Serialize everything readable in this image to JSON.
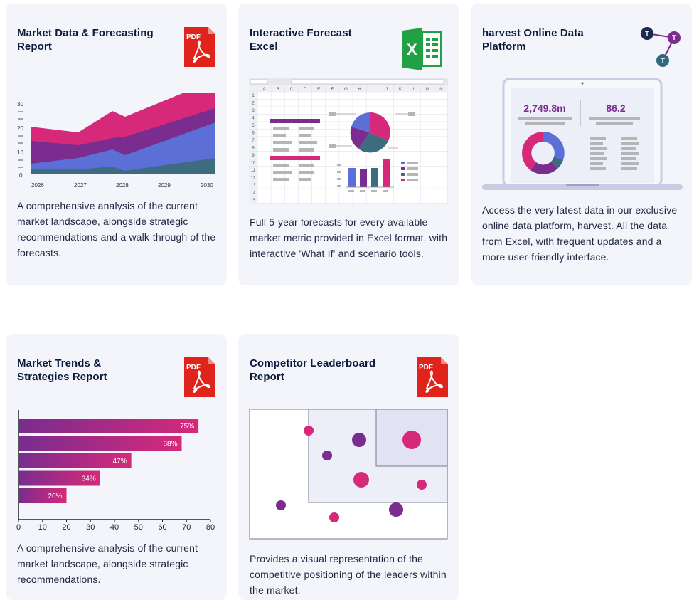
{
  "cards": [
    {
      "title": "Market Data & Forecasting\nReport",
      "icon": "pdf-icon",
      "icon_label": "PDF",
      "description": "A comprehensive analysis of the current market landscape, alongside strategic recommendations and a walk-through of the forecasts.",
      "chart": {
        "y_ticks": [
          "30",
          "20",
          "10",
          "0"
        ],
        "x_ticks": [
          "2026",
          "2027",
          "2028",
          "2029",
          "2030"
        ]
      }
    },
    {
      "title": "Interactive Forecast\nExcel",
      "icon": "excel-icon",
      "icon_label": "X",
      "description": "Full 5-year forecasts for every available market metric provided in Excel format, with interactive 'What If' and scenario tools.",
      "sheet": {
        "columns": [
          "A",
          "B",
          "C",
          "D",
          "E",
          "F",
          "G",
          "H",
          "I",
          "J",
          "K",
          "L",
          "M",
          "N"
        ],
        "rows": [
          "1",
          "2",
          "3",
          "4",
          "5",
          "6",
          "7",
          "8",
          "9",
          "10",
          "11",
          "12",
          "13",
          "14",
          "15"
        ]
      }
    },
    {
      "title": "harvest Online Data\nPlatform",
      "icon": "network-icon",
      "description": "Access the very latest data in our exclusive online data platform, harvest. All the data from Excel, with frequent updates and a more user-friendly interface.",
      "metrics": [
        "2,749.8m",
        "86.2"
      ]
    },
    {
      "title": "Market Trends &\nStrategies Report",
      "icon": "pdf-icon",
      "icon_label": "PDF",
      "description": "A comprehensive analysis of the current market landscape, alongside strategic recommendations.",
      "bars": [
        {
          "label": "75%",
          "value": 75
        },
        {
          "label": "68%",
          "value": 68
        },
        {
          "label": "47%",
          "value": 47
        },
        {
          "label": "34%",
          "value": 34
        },
        {
          "label": "20%",
          "value": 20
        }
      ],
      "x_ticks": [
        "0",
        "10",
        "20",
        "30",
        "40",
        "50",
        "60",
        "70",
        "80"
      ]
    },
    {
      "title": "Competitor Leaderboard\nReport",
      "icon": "pdf-icon",
      "icon_label": "PDF",
      "description": "Provides a visual representation of the competitive positioning of the leaders within the market."
    }
  ],
  "colors": {
    "card_bg": "#f4f5fb",
    "pdf_red": "#e0241c",
    "excel_green": "#21a045",
    "magenta": "#d6297a",
    "purple": "#7a2c8f",
    "blue": "#5b6fd6",
    "teal": "#3d6b80"
  }
}
